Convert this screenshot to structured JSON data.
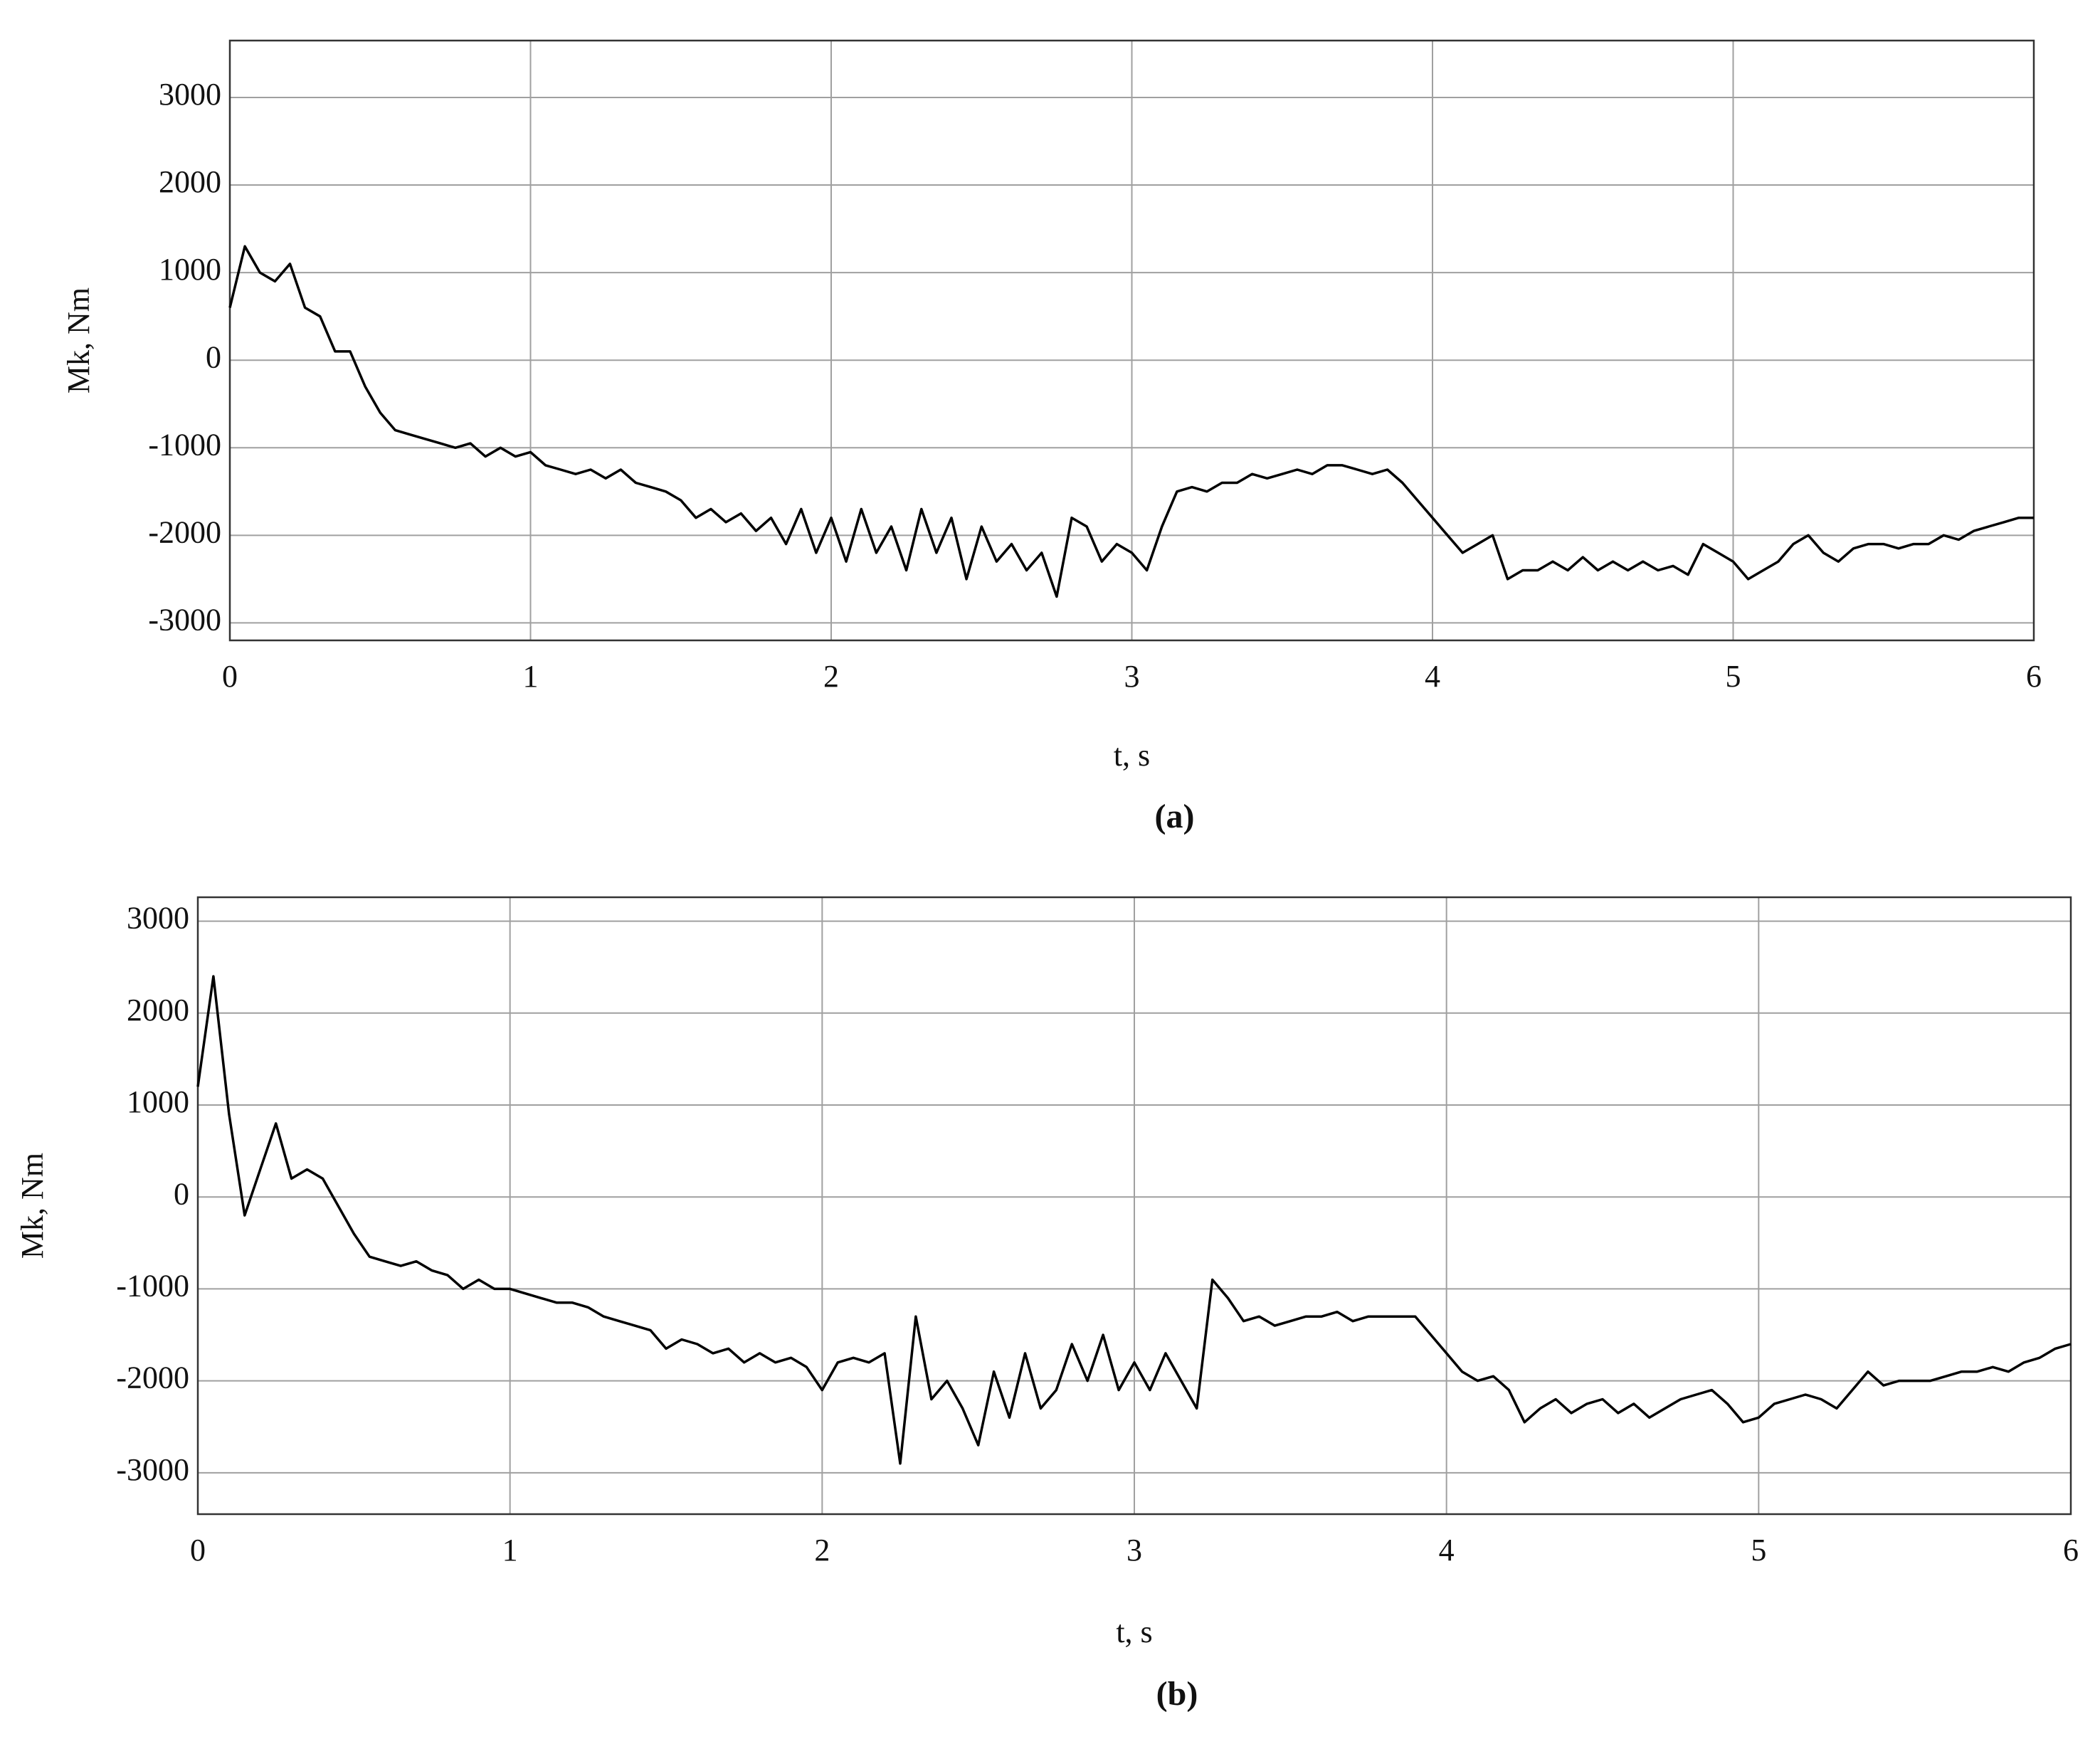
{
  "chart_data": [
    {
      "type": "line",
      "caption": "(a)",
      "xlabel": "t, s",
      "ylabel": "Mk, Nm",
      "color": "#000000",
      "grid": true,
      "xlim": [
        0,
        6
      ],
      "xticks": [
        0,
        1,
        2,
        3,
        4,
        5,
        6
      ],
      "ylim": [
        -3200,
        3650
      ],
      "yticks": [
        -3000,
        -2000,
        -1000,
        0,
        1000,
        2000,
        3000
      ],
      "x": [
        0,
        0.05,
        0.1,
        0.15,
        0.2,
        0.25,
        0.3,
        0.35,
        0.4,
        0.45,
        0.5,
        0.55,
        0.6,
        0.65,
        0.7,
        0.75,
        0.8,
        0.85,
        0.9,
        0.95,
        1,
        1.05,
        1.1,
        1.15,
        1.2,
        1.25,
        1.3,
        1.35,
        1.4,
        1.45,
        1.5,
        1.55,
        1.6,
        1.65,
        1.7,
        1.75,
        1.8,
        1.85,
        1.9,
        1.95,
        2,
        2.05,
        2.1,
        2.15,
        2.2,
        2.25,
        2.3,
        2.35,
        2.4,
        2.45,
        2.5,
        2.55,
        2.6,
        2.65,
        2.7,
        2.75,
        2.8,
        2.85,
        2.9,
        2.95,
        3,
        3.05,
        3.1,
        3.15,
        3.2,
        3.25,
        3.3,
        3.35,
        3.4,
        3.45,
        3.5,
        3.55,
        3.6,
        3.65,
        3.7,
        3.75,
        3.8,
        3.85,
        3.9,
        3.95,
        4,
        4.05,
        4.1,
        4.15,
        4.2,
        4.25,
        4.3,
        4.35,
        4.4,
        4.45,
        4.5,
        4.55,
        4.6,
        4.65,
        4.7,
        4.75,
        4.8,
        4.85,
        4.9,
        4.95,
        5,
        5.05,
        5.1,
        5.15,
        5.2,
        5.25,
        5.3,
        5.35,
        5.4,
        5.45,
        5.5,
        5.55,
        5.6,
        5.65,
        5.7,
        5.75,
        5.8,
        5.85,
        5.9,
        5.95,
        6
      ],
      "values": [
        600,
        1300,
        1000,
        900,
        1100,
        600,
        500,
        100,
        100,
        -300,
        -600,
        -800,
        -850,
        -900,
        -950,
        -1000,
        -950,
        -1100,
        -1000,
        -1100,
        -1050,
        -1200,
        -1250,
        -1300,
        -1250,
        -1350,
        -1250,
        -1400,
        -1450,
        -1500,
        -1600,
        -1800,
        -1700,
        -1850,
        -1750,
        -1950,
        -1800,
        -2100,
        -1700,
        -2200,
        -1800,
        -2300,
        -1700,
        -2200,
        -1900,
        -2400,
        -1700,
        -2200,
        -1800,
        -2500,
        -1900,
        -2300,
        -2100,
        -2400,
        -2200,
        -2700,
        -1800,
        -1900,
        -2300,
        -2100,
        -2200,
        -2400,
        -1900,
        -1500,
        -1450,
        -1500,
        -1400,
        -1400,
        -1300,
        -1350,
        -1300,
        -1250,
        -1300,
        -1200,
        -1200,
        -1250,
        -1300,
        -1250,
        -1400,
        -1600,
        -1800,
        -2000,
        -2200,
        -2100,
        -2000,
        -2500,
        -2400,
        -2400,
        -2300,
        -2400,
        -2250,
        -2400,
        -2300,
        -2400,
        -2300,
        -2400,
        -2350,
        -2450,
        -2100,
        -2200,
        -2300,
        -2500,
        -2400,
        -2300,
        -2100,
        -2000,
        -2200,
        -2300,
        -2150,
        -2100,
        -2100,
        -2150,
        -2100,
        -2100,
        -2000,
        -2050,
        -1950,
        -1900,
        -1850,
        -1800,
        -1800
      ]
    },
    {
      "type": "line",
      "caption": "(b)",
      "xlabel": "t, s",
      "ylabel": "Mk, Nm",
      "color": "#000000",
      "grid": true,
      "xlim": [
        0,
        6
      ],
      "xticks": [
        0,
        1,
        2,
        3,
        4,
        5,
        6
      ],
      "ylim": [
        -3450,
        3260
      ],
      "yticks": [
        -3000,
        -2000,
        -1000,
        0,
        1000,
        2000,
        3000
      ],
      "x": [
        0,
        0.05,
        0.1,
        0.15,
        0.2,
        0.25,
        0.3,
        0.35,
        0.4,
        0.45,
        0.5,
        0.55,
        0.6,
        0.65,
        0.7,
        0.75,
        0.8,
        0.85,
        0.9,
        0.95,
        1,
        1.05,
        1.1,
        1.15,
        1.2,
        1.25,
        1.3,
        1.35,
        1.4,
        1.45,
        1.5,
        1.55,
        1.6,
        1.65,
        1.7,
        1.75,
        1.8,
        1.85,
        1.9,
        1.95,
        2,
        2.05,
        2.1,
        2.15,
        2.2,
        2.25,
        2.3,
        2.35,
        2.4,
        2.45,
        2.5,
        2.55,
        2.6,
        2.65,
        2.7,
        2.75,
        2.8,
        2.85,
        2.9,
        2.95,
        3,
        3.05,
        3.1,
        3.15,
        3.2,
        3.25,
        3.3,
        3.35,
        3.4,
        3.45,
        3.5,
        3.55,
        3.6,
        3.65,
        3.7,
        3.75,
        3.8,
        3.85,
        3.9,
        3.95,
        4,
        4.05,
        4.1,
        4.15,
        4.2,
        4.25,
        4.3,
        4.35,
        4.4,
        4.45,
        4.5,
        4.55,
        4.6,
        4.65,
        4.7,
        4.75,
        4.8,
        4.85,
        4.9,
        4.95,
        5,
        5.05,
        5.1,
        5.15,
        5.2,
        5.25,
        5.3,
        5.35,
        5.4,
        5.45,
        5.5,
        5.55,
        5.6,
        5.65,
        5.7,
        5.75,
        5.8,
        5.85,
        5.9,
        5.95,
        6
      ],
      "values": [
        1200,
        2400,
        900,
        -200,
        300,
        800,
        200,
        300,
        200,
        -100,
        -400,
        -650,
        -700,
        -750,
        -700,
        -800,
        -850,
        -1000,
        -900,
        -1000,
        -1000,
        -1050,
        -1100,
        -1150,
        -1150,
        -1200,
        -1300,
        -1350,
        -1400,
        -1450,
        -1650,
        -1550,
        -1600,
        -1700,
        -1650,
        -1800,
        -1700,
        -1800,
        -1750,
        -1850,
        -2100,
        -1800,
        -1750,
        -1800,
        -1700,
        -2900,
        -1300,
        -2200,
        -2000,
        -2300,
        -2700,
        -1900,
        -2400,
        -1700,
        -2300,
        -2100,
        -1600,
        -2000,
        -1500,
        -2100,
        -1800,
        -2100,
        -1700,
        -2000,
        -2300,
        -900,
        -1100,
        -1350,
        -1300,
        -1400,
        -1350,
        -1300,
        -1300,
        -1250,
        -1350,
        -1300,
        -1300,
        -1300,
        -1300,
        -1500,
        -1700,
        -1900,
        -2000,
        -1950,
        -2100,
        -2450,
        -2300,
        -2200,
        -2350,
        -2250,
        -2200,
        -2350,
        -2250,
        -2400,
        -2300,
        -2200,
        -2150,
        -2100,
        -2250,
        -2450,
        -2400,
        -2250,
        -2200,
        -2150,
        -2200,
        -2300,
        -2100,
        -1900,
        -2050,
        -2000,
        -2000,
        -2000,
        -1950,
        -1900,
        -1900,
        -1850,
        -1900,
        -1800,
        -1750,
        -1650,
        -1600
      ]
    }
  ]
}
